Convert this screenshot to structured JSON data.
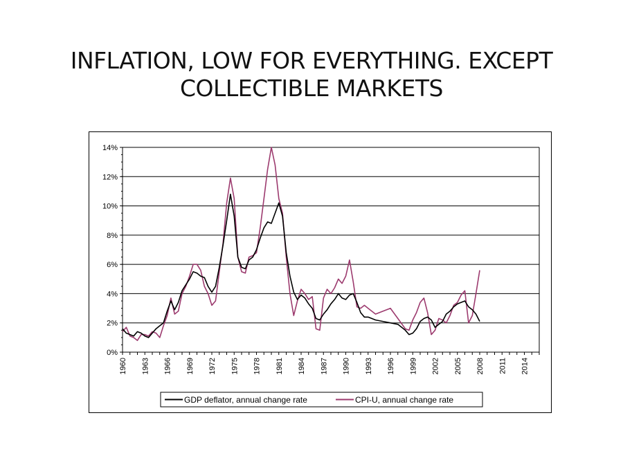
{
  "slide": {
    "title_line1": "INFLATION, LOW FOR EVERYTHING. EXCEPT",
    "title_line2": "COLLECTIBLE MARKETS"
  },
  "colors": {
    "gdp_series": "#000000",
    "cpi_series": "#9c3a6e",
    "gridline": "#000000"
  },
  "chart_data": {
    "type": "line",
    "title": "",
    "xlabel": "",
    "ylabel": "",
    "xlim": [
      1960,
      2016
    ],
    "ylim": [
      0,
      14
    ],
    "y_ticks": [
      0,
      2,
      4,
      6,
      8,
      10,
      12,
      14
    ],
    "y_tick_labels": [
      "0%",
      "2%",
      "4%",
      "6%",
      "8%",
      "10%",
      "12%",
      "14%"
    ],
    "x_ticks": [
      1960,
      1963,
      1966,
      1969,
      1972,
      1975,
      1978,
      1981,
      1984,
      1987,
      1990,
      1993,
      1996,
      1999,
      2002,
      2005,
      2008,
      2011,
      2014
    ],
    "x_tick_labels": [
      "1960",
      "1963",
      "1966",
      "1969",
      "1972",
      "1975",
      "1978",
      "1981",
      "1984",
      "1987",
      "1990",
      "1993",
      "1996",
      "1999",
      "2002",
      "2005",
      "2008",
      "2011",
      "2014"
    ],
    "grid": "horizontal",
    "legend_position": "bottom",
    "series": [
      {
        "name": "GDP deflator, annual change rate",
        "x": [
          1960,
          1960.5,
          1961,
          1961.5,
          1962,
          1962.5,
          1963,
          1963.5,
          1964,
          1964.5,
          1965,
          1965.5,
          1966,
          1966.5,
          1967,
          1967.5,
          1968,
          1968.5,
          1969,
          1969.5,
          1970,
          1970.5,
          1971,
          1971.5,
          1972,
          1972.5,
          1973,
          1973.5,
          1974,
          1974.5,
          1975,
          1975.5,
          1976,
          1976.5,
          1977,
          1977.5,
          1978,
          1978.5,
          1979,
          1979.5,
          1980,
          1980.5,
          1981,
          1981.5,
          1982,
          1982.5,
          1983,
          1983.5,
          1984,
          1984.5,
          1985,
          1985.5,
          1986,
          1986.5,
          1987,
          1987.5,
          1988,
          1988.5,
          1989,
          1989.5,
          1990,
          1990.5,
          1991,
          1991.5,
          1992,
          1992.5,
          1993,
          1994,
          1995,
          1996,
          1997,
          1998,
          1998.5,
          1999,
          1999.5,
          2000,
          2000.5,
          2001,
          2001.5,
          2002,
          2002.5,
          2003,
          2003.5,
          2004,
          2004.5,
          2005,
          2005.5,
          2006,
          2006.5,
          2007,
          2007.5,
          2008
        ],
        "values": [
          1.6,
          1.3,
          1.2,
          1.1,
          1.4,
          1.3,
          1.1,
          1.0,
          1.3,
          1.6,
          1.8,
          2.0,
          2.8,
          3.5,
          2.9,
          3.4,
          4.2,
          4.6,
          5.0,
          5.5,
          5.4,
          5.2,
          5.1,
          4.5,
          4.1,
          4.5,
          5.8,
          7.3,
          9.0,
          10.8,
          9.3,
          6.5,
          5.8,
          5.7,
          6.3,
          6.5,
          7.0,
          7.8,
          8.5,
          8.9,
          8.8,
          9.5,
          10.2,
          9.3,
          6.8,
          5.2,
          4.1,
          3.6,
          3.9,
          3.7,
          3.3,
          3.0,
          2.3,
          2.2,
          2.6,
          2.9,
          3.3,
          3.6,
          4.0,
          3.7,
          3.6,
          3.9,
          4.0,
          3.4,
          2.7,
          2.4,
          2.4,
          2.2,
          2.1,
          2.0,
          1.9,
          1.5,
          1.2,
          1.3,
          1.6,
          2.1,
          2.3,
          2.4,
          2.2,
          1.7,
          1.9,
          2.1,
          2.6,
          2.8,
          3.1,
          3.3,
          3.4,
          3.5,
          3.1,
          2.9,
          2.6,
          2.1
        ]
      },
      {
        "name": "CPI-U, annual change rate",
        "x": [
          1960,
          1960.5,
          1961,
          1961.5,
          1962,
          1962.5,
          1963,
          1963.5,
          1964,
          1964.5,
          1965,
          1965.5,
          1966,
          1966.5,
          1967,
          1967.5,
          1968,
          1968.5,
          1969,
          1969.5,
          1970,
          1970.5,
          1971,
          1971.5,
          1972,
          1972.5,
          1973,
          1973.5,
          1974,
          1974.5,
          1975,
          1975.5,
          1976,
          1976.5,
          1977,
          1977.5,
          1978,
          1978.5,
          1979,
          1979.5,
          1980,
          1980.5,
          1981,
          1981.5,
          1982,
          1982.5,
          1983,
          1983.5,
          1984,
          1984.5,
          1985,
          1985.5,
          1986,
          1986.5,
          1987,
          1987.5,
          1988,
          1988.5,
          1989,
          1989.5,
          1990,
          1990.5,
          1991,
          1991.5,
          1992,
          1992.5,
          1993,
          1994,
          1995,
          1996,
          1997,
          1998,
          1998.5,
          1999,
          1999.5,
          2000,
          2000.5,
          2001,
          2001.5,
          2002,
          2002.5,
          2003,
          2003.5,
          2004,
          2004.5,
          2005,
          2005.5,
          2006,
          2006.5,
          2007,
          2007.5,
          2008
        ],
        "values": [
          1.4,
          1.7,
          1.1,
          1.0,
          0.8,
          1.2,
          1.2,
          1.1,
          1.4,
          1.3,
          1.0,
          1.8,
          2.5,
          3.7,
          2.6,
          2.8,
          4.0,
          4.5,
          5.2,
          6.0,
          6.0,
          5.6,
          4.5,
          4.0,
          3.2,
          3.5,
          5.5,
          7.4,
          10.2,
          11.9,
          10.5,
          6.5,
          5.5,
          5.4,
          6.5,
          6.6,
          6.8,
          8.5,
          10.5,
          12.5,
          14.0,
          12.8,
          10.5,
          9.5,
          6.5,
          4.0,
          2.5,
          3.5,
          4.3,
          4.0,
          3.6,
          3.8,
          1.6,
          1.5,
          3.7,
          4.3,
          4.0,
          4.4,
          5.0,
          4.7,
          5.2,
          6.3,
          4.8,
          3.1,
          3.0,
          3.2,
          3.0,
          2.6,
          2.8,
          3.0,
          2.3,
          1.6,
          1.5,
          2.2,
          2.7,
          3.4,
          3.7,
          2.7,
          1.2,
          1.5,
          2.3,
          2.2,
          2.0,
          2.5,
          3.2,
          3.4,
          3.9,
          4.2,
          2.0,
          2.5,
          4.0,
          5.6
        ]
      }
    ]
  }
}
